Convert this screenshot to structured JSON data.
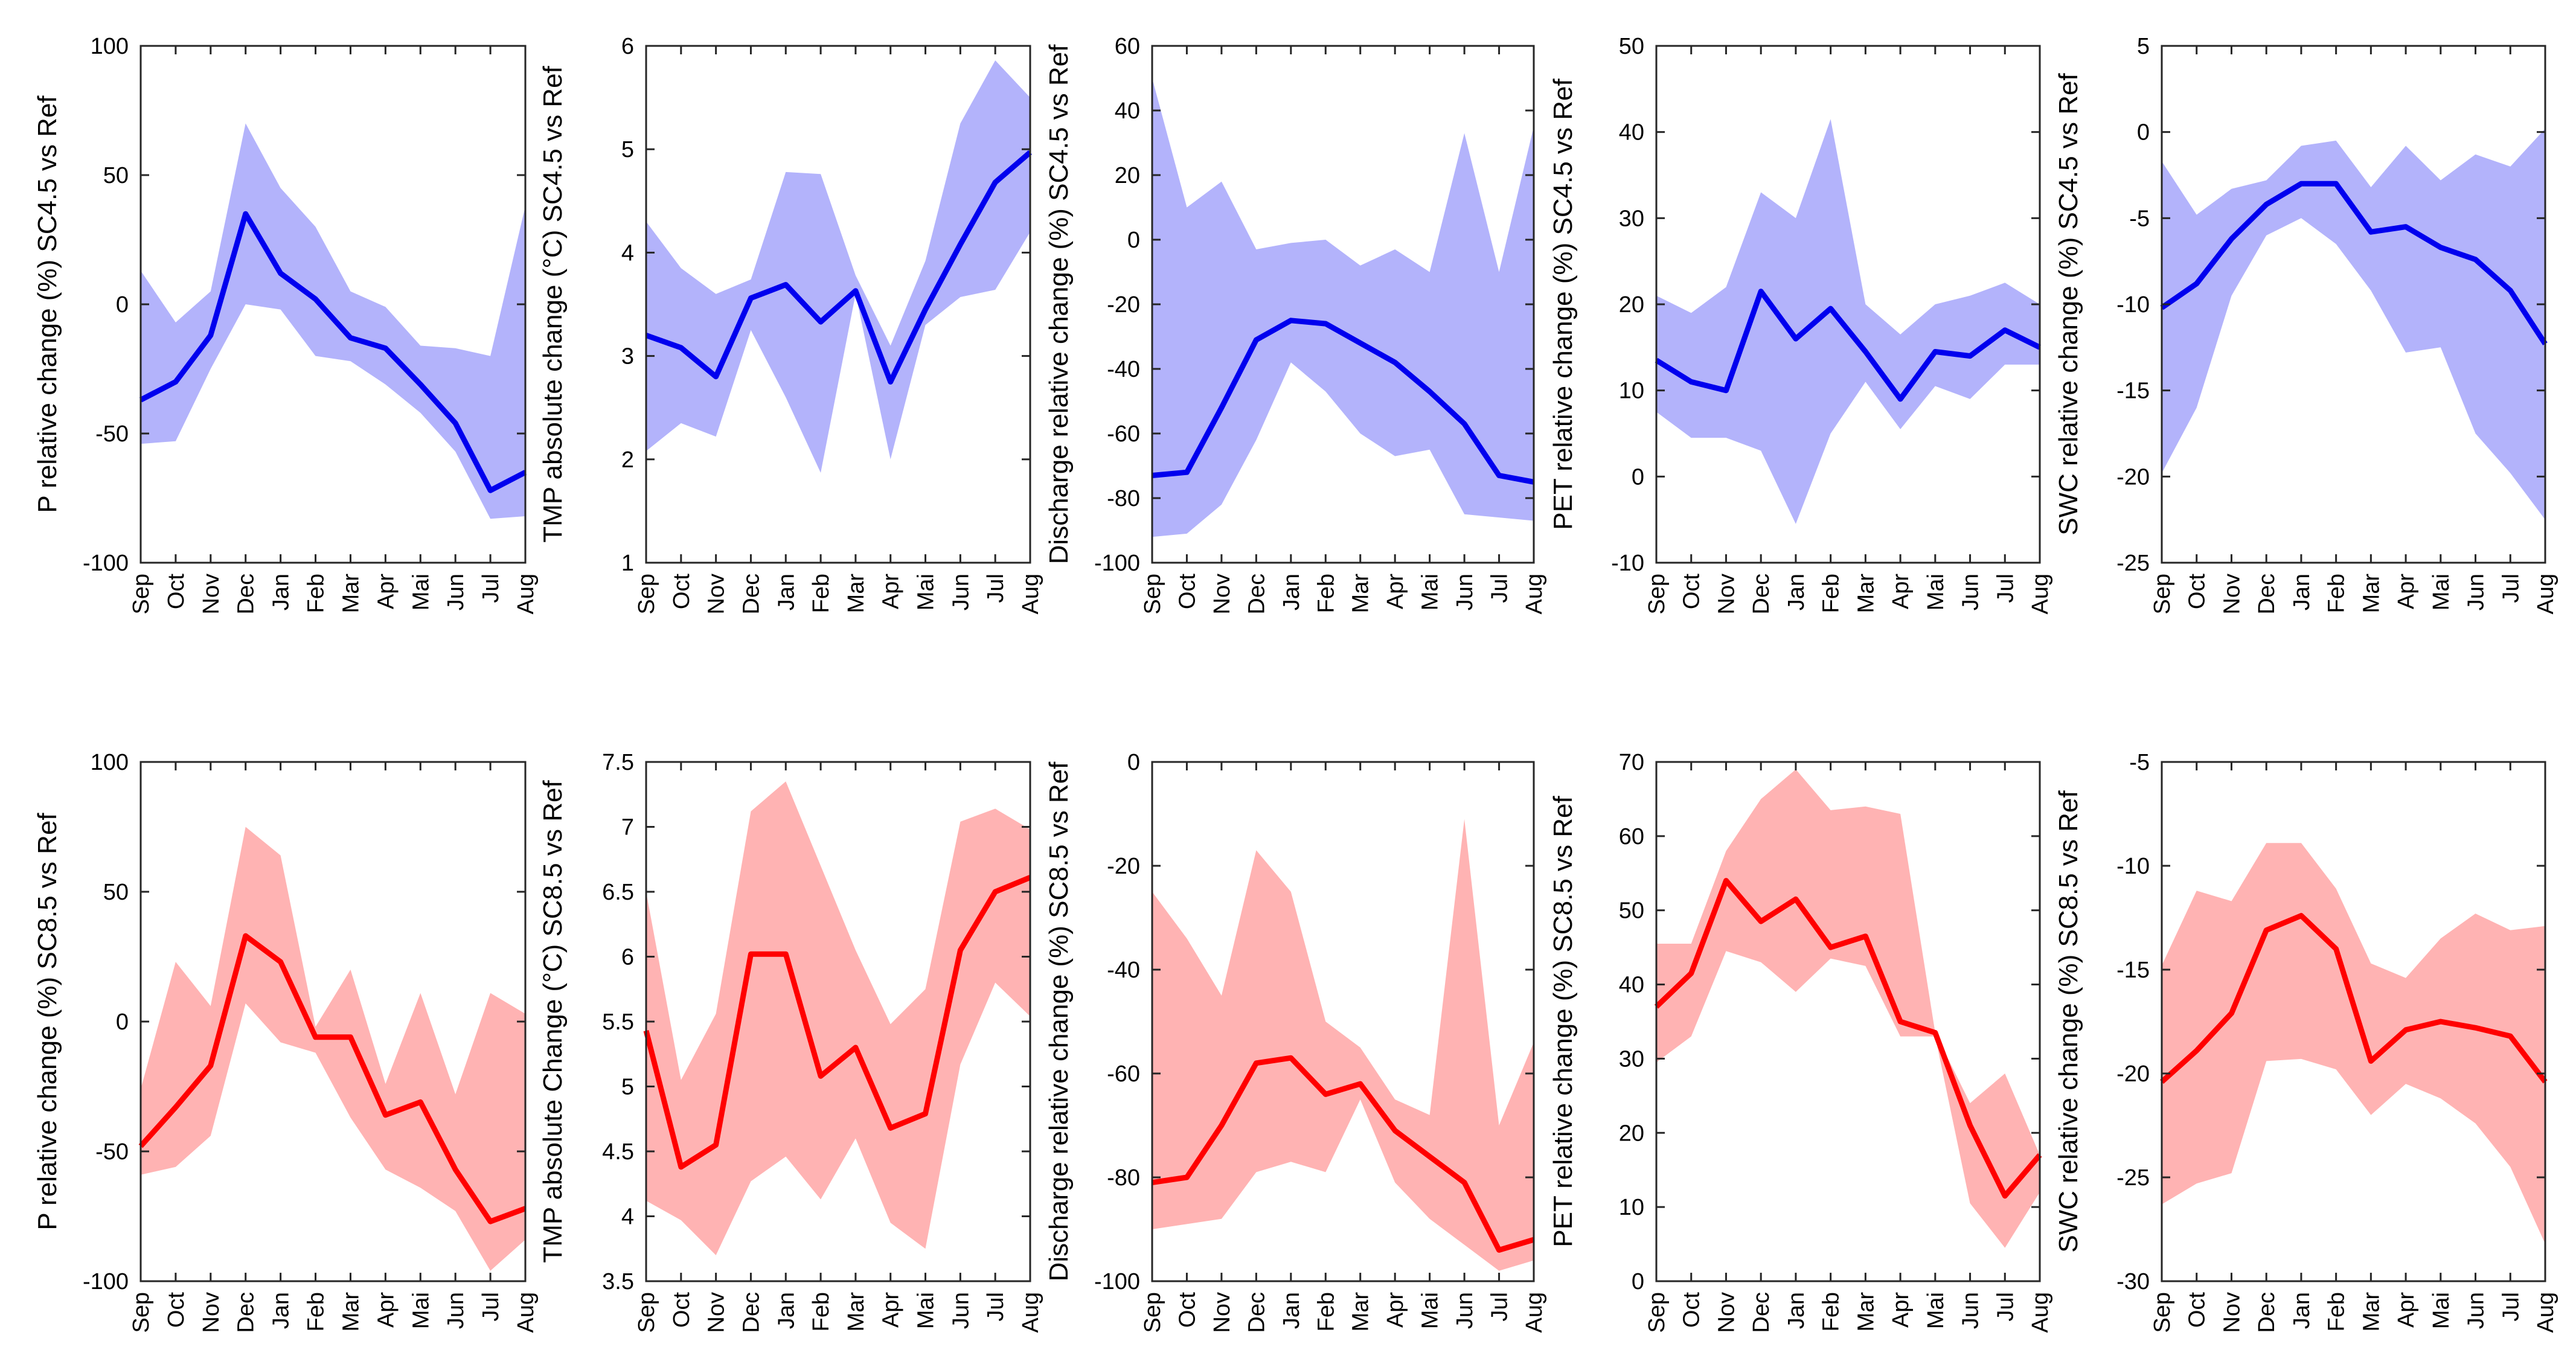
{
  "months": [
    "Sep",
    "Oct",
    "Nov",
    "Dec",
    "Jan",
    "Feb",
    "Mar",
    "Apr",
    "Mai",
    "Jun",
    "Jul",
    "Aug"
  ],
  "colors": {
    "sc45_line": "#0000ee",
    "sc45_band": "#b3b3fb",
    "sc85_line": "#ff0000",
    "sc85_band": "#ffb3b3"
  },
  "chart_data": [
    {
      "type": "area",
      "scenario": "SC4.5",
      "ylabel": "P relative change (%) SC4.5 vs Ref",
      "ylim": [
        -100,
        100
      ],
      "yticks": [
        -100,
        -50,
        0,
        50,
        100
      ],
      "mean": [
        -37,
        -30,
        -12,
        35,
        12,
        2,
        -13,
        -17,
        -31,
        -46,
        -72,
        -65
      ],
      "lower": [
        -54,
        -53,
        -25,
        0,
        -2,
        -20,
        -22,
        -31,
        -42,
        -57,
        -83,
        -82
      ],
      "upper": [
        13,
        -7,
        5,
        70,
        45,
        30,
        5,
        -1,
        -16,
        -17,
        -20,
        38
      ]
    },
    {
      "type": "area",
      "scenario": "SC4.5",
      "ylabel": "TMP absolute change (°C) SC4.5 vs Ref",
      "ylim": [
        1,
        6
      ],
      "yticks": [
        1,
        2,
        3,
        4,
        5,
        6
      ],
      "mean": [
        3.2,
        3.08,
        2.8,
        3.56,
        3.69,
        3.33,
        3.63,
        2.75,
        3.45,
        4.08,
        4.68,
        4.97
      ],
      "lower": [
        2.08,
        2.35,
        2.22,
        3.25,
        2.6,
        1.87,
        3.6,
        2.0,
        3.3,
        3.57,
        3.64,
        4.2
      ],
      "upper": [
        4.3,
        3.85,
        3.6,
        3.74,
        4.78,
        4.76,
        3.78,
        3.1,
        3.92,
        5.25,
        5.86,
        5.5
      ]
    },
    {
      "type": "area",
      "scenario": "SC4.5",
      "ylabel": "Discharge relative change (%) SC4.5 vs Ref",
      "ylim": [
        -100,
        60
      ],
      "yticks": [
        -100,
        -80,
        -60,
        -40,
        -20,
        0,
        20,
        40,
        60
      ],
      "mean": [
        -73,
        -72,
        -52,
        -31,
        -25,
        -26,
        -32,
        -38,
        -47,
        -57,
        -73,
        -75
      ],
      "lower": [
        -92,
        -91,
        -82,
        -62,
        -38,
        -47,
        -60,
        -67,
        -65,
        -85,
        -86,
        -87
      ],
      "upper": [
        50,
        10,
        18,
        -3,
        -1,
        0,
        -8,
        -3,
        -10,
        33,
        -10,
        35
      ]
    },
    {
      "type": "area",
      "scenario": "SC4.5",
      "ylabel": "PET relative change (%) SC4.5 vs Ref",
      "ylim": [
        -10,
        50
      ],
      "yticks": [
        -10,
        0,
        10,
        20,
        30,
        40,
        50
      ],
      "mean": [
        13.5,
        11,
        10,
        21.5,
        16,
        19.5,
        14.5,
        9,
        14.5,
        14,
        17,
        15
      ],
      "lower": [
        7.5,
        4.5,
        4.5,
        3,
        -5.5,
        5,
        11,
        5.5,
        10.5,
        9,
        13,
        13
      ],
      "upper": [
        21,
        19,
        22,
        33,
        30,
        41.5,
        20,
        16.5,
        20,
        21,
        22.5,
        20
      ]
    },
    {
      "type": "area",
      "scenario": "SC4.5",
      "ylabel": "SWC relative change (%) SC4.5 vs Ref",
      "ylim": [
        -25,
        5
      ],
      "yticks": [
        -25,
        -20,
        -15,
        -10,
        -5,
        0,
        5
      ],
      "mean": [
        -10.2,
        -8.8,
        -6.2,
        -4.2,
        -3.0,
        -3.0,
        -5.8,
        -5.5,
        -6.7,
        -7.4,
        -9.2,
        -12.3
      ],
      "lower": [
        -19.8,
        -16.0,
        -9.5,
        -6.0,
        -5.0,
        -6.5,
        -9.2,
        -12.8,
        -12.5,
        -17.5,
        -19.8,
        -22.5
      ],
      "upper": [
        -1.7,
        -4.8,
        -3.3,
        -2.8,
        -0.8,
        -0.5,
        -3.2,
        -0.8,
        -2.8,
        -1.3,
        -2.0,
        0.2
      ]
    },
    {
      "type": "area",
      "scenario": "SC8.5",
      "ylabel": "P relative change (%) SC8.5 vs Ref",
      "ylim": [
        -100,
        100
      ],
      "yticks": [
        -100,
        -50,
        0,
        50,
        100
      ],
      "mean": [
        -48,
        -33,
        -17,
        33,
        23,
        -6,
        -6,
        -36,
        -31,
        -57,
        -77,
        -72
      ],
      "lower": [
        -59,
        -56,
        -44,
        7,
        -8,
        -12,
        -37,
        -57,
        -64,
        -73,
        -96,
        -84
      ],
      "upper": [
        -26,
        23,
        6,
        75,
        64,
        -2,
        20,
        -24,
        11,
        -28,
        11,
        3
      ]
    },
    {
      "type": "area",
      "scenario": "SC8.5",
      "ylabel": "TMP absolute Change (°C) SC8.5 vs Ref",
      "ylim": [
        3.5,
        7.5
      ],
      "yticks": [
        3.5,
        4,
        4.5,
        5,
        5.5,
        6,
        6.5,
        7,
        7.5
      ],
      "mean": [
        5.43,
        4.38,
        4.55,
        6.02,
        6.02,
        5.08,
        5.3,
        4.68,
        4.79,
        6.05,
        6.5,
        6.61
      ],
      "lower": [
        4.12,
        3.97,
        3.7,
        4.27,
        4.46,
        4.13,
        4.6,
        3.95,
        3.75,
        5.17,
        5.8,
        5.54
      ],
      "upper": [
        6.5,
        5.05,
        5.56,
        7.12,
        7.35,
        6.7,
        6.05,
        5.48,
        5.75,
        7.04,
        7.14,
        6.98
      ]
    },
    {
      "type": "area",
      "scenario": "SC8.5",
      "ylabel": "Discharge relative change (%) SC8.5 vs Ref",
      "ylim": [
        -100,
        0
      ],
      "yticks": [
        -100,
        -80,
        -60,
        -40,
        -20,
        0
      ],
      "mean": [
        -81,
        -80,
        -70,
        -58,
        -57,
        -64,
        -62,
        -71,
        -76,
        -81,
        -94,
        -92
      ],
      "lower": [
        -90,
        -89,
        -88,
        -79,
        -77,
        -79,
        -65,
        -81,
        -88,
        -93,
        -98,
        -96
      ],
      "upper": [
        -25,
        -34,
        -45,
        -17,
        -25,
        -50,
        -55,
        -65,
        -68,
        -11,
        -70,
        -54
      ]
    },
    {
      "type": "area",
      "scenario": "SC8.5",
      "ylabel": "PET relative change (%) SC8.5 vs Ref",
      "ylim": [
        0,
        70
      ],
      "yticks": [
        0,
        10,
        20,
        30,
        40,
        50,
        60,
        70
      ],
      "mean": [
        37,
        41.5,
        54,
        48.5,
        51.5,
        45,
        46.5,
        35,
        33.5,
        21,
        11.5,
        17
      ],
      "lower": [
        29.5,
        33,
        44.5,
        43,
        39,
        43.5,
        42.5,
        33,
        33,
        10.5,
        4.5,
        12
      ],
      "upper": [
        45.5,
        45.5,
        58,
        65,
        69,
        63.5,
        64,
        63,
        33.5,
        24,
        28,
        17
      ]
    },
    {
      "type": "area",
      "scenario": "SC8.5",
      "ylabel": "SWC relative change (%) SC8.5 vs Ref",
      "ylim": [
        -30,
        -5
      ],
      "yticks": [
        -30,
        -25,
        -20,
        -15,
        -10,
        -5
      ],
      "mean": [
        -20.4,
        -18.9,
        -17.1,
        -13.1,
        -12.4,
        -14.0,
        -19.4,
        -17.9,
        -17.5,
        -17.8,
        -18.2,
        -20.4
      ],
      "lower": [
        -26.3,
        -25.3,
        -24.8,
        -19.4,
        -19.3,
        -19.8,
        -22.0,
        -20.5,
        -21.2,
        -22.4,
        -24.5,
        -28.2
      ],
      "upper": [
        -14.8,
        -11.2,
        -11.7,
        -8.9,
        -8.9,
        -11.1,
        -14.7,
        -15.4,
        -13.5,
        -12.3,
        -13.1,
        -12.9
      ]
    }
  ]
}
